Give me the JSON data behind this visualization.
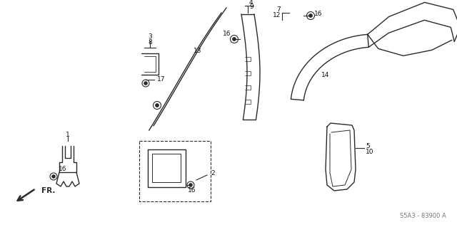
{
  "bg_color": "#ffffff",
  "line_color": "#2a2a2a",
  "label_color": "#111111",
  "watermark": "S5A3 - 83900 A",
  "fr_label": "FR.",
  "figsize": [
    6.4,
    3.19
  ],
  "dpi": 100
}
